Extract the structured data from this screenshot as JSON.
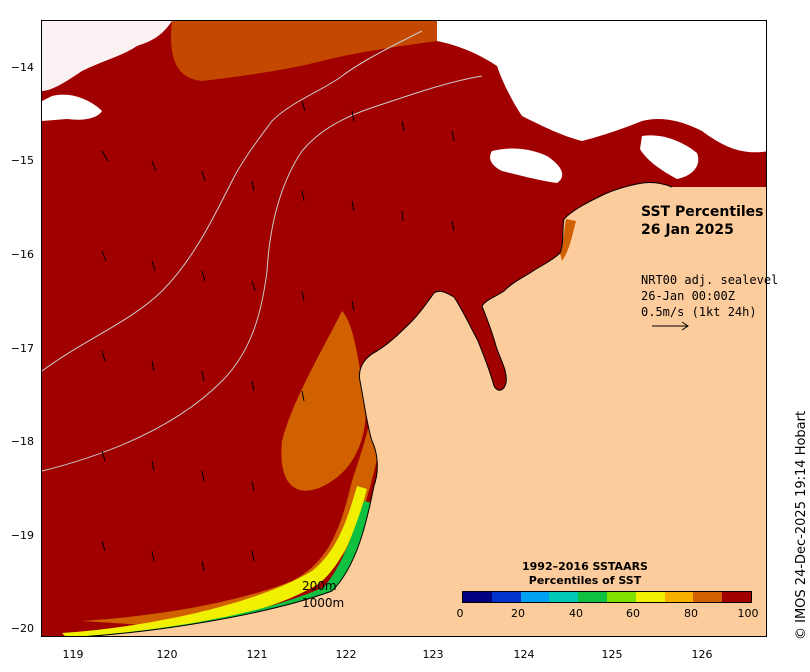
{
  "map": {
    "title_line1": "SST Percentiles",
    "title_line2": "26 Jan 2025",
    "source_line1": "NRT00 adj. sealevel",
    "source_line2": "26-Jan 00:00Z",
    "source_line3": "0.5m/s (1kt 24h)",
    "contour_label_1": "200m",
    "contour_label_2": "1000m",
    "lat_ticks": [
      "−14",
      "−15",
      "−16",
      "−17",
      "−18",
      "−19",
      "−20"
    ],
    "lon_ticks": [
      "119",
      "120",
      "121",
      "122",
      "123",
      "124",
      "125",
      "126"
    ],
    "credit": "© IMOS 24-Dec-2025 19:14 Hobart"
  },
  "colorbar": {
    "title_line1": "1992–2016 SSTAARS",
    "title_line2": "Percentiles of SST",
    "tick_labels": [
      "0",
      "20",
      "40",
      "60",
      "80",
      "100"
    ],
    "colors": [
      "#000080",
      "#0033cc",
      "#00a0f0",
      "#00c8b4",
      "#10c040",
      "#80e000",
      "#f0f000",
      "#f8b000",
      "#d06000",
      "#a00000"
    ]
  },
  "palette": {
    "land": "#fdcc9c",
    "sea_high": "#a00000",
    "cloud": "#ffffff"
  }
}
